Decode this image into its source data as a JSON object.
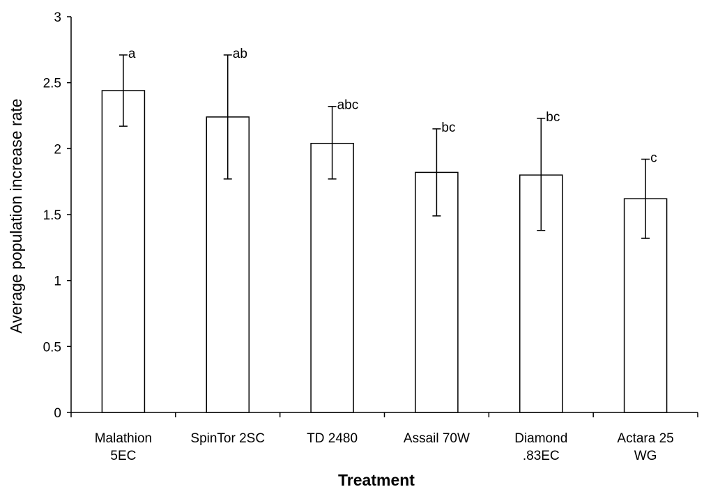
{
  "chart_data": {
    "type": "bar",
    "xlabel": "Treatment",
    "ylabel": "Average population increase rate",
    "ylim": [
      0,
      3
    ],
    "yticks": [
      "0",
      "0.5",
      "1",
      "1.5",
      "2",
      "2.5",
      "3"
    ],
    "grid": false,
    "categories": [
      [
        "Malathion",
        "5EC"
      ],
      [
        "SpinTor 2SC"
      ],
      [
        "TD 2480"
      ],
      [
        "Assail 70W"
      ],
      [
        "Diamond",
        ".83EC"
      ],
      [
        "Actara 25",
        "WG"
      ]
    ],
    "values": [
      2.44,
      2.24,
      2.04,
      1.82,
      1.8,
      1.62
    ],
    "error_low": [
      2.17,
      1.77,
      1.77,
      1.49,
      1.38,
      1.32
    ],
    "error_high": [
      2.71,
      2.71,
      2.32,
      2.15,
      2.23,
      1.92
    ],
    "significance": [
      "a",
      "ab",
      "abc",
      "bc",
      "bc",
      "c"
    ],
    "colors": {
      "bar_fill": "#ffffff",
      "bar_stroke": "#000000",
      "axis": "#000000"
    }
  }
}
